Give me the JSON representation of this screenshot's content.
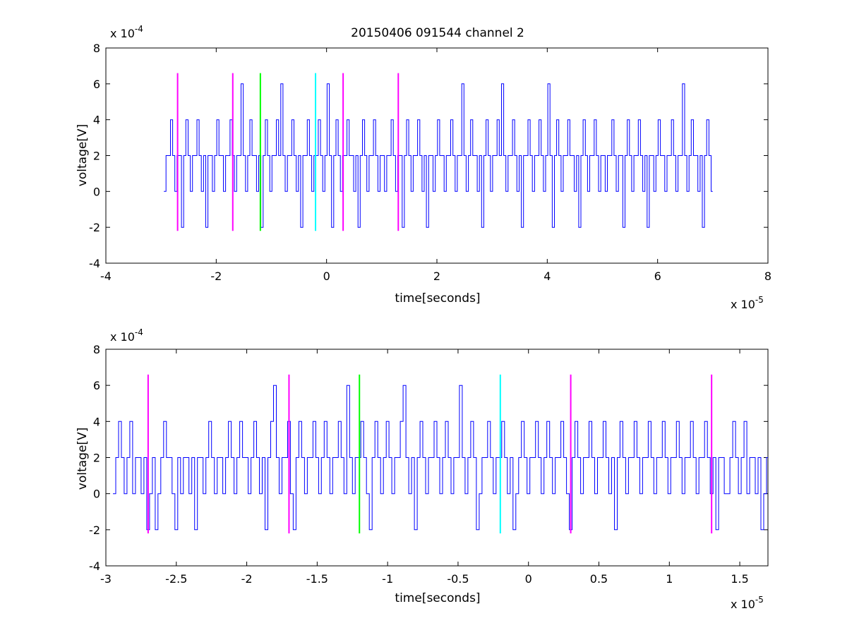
{
  "title": "20150406 091544 channel 2",
  "chart_data": [
    {
      "type": "line",
      "xlabel": "time[seconds]",
      "ylabel": "voltage[V]",
      "x_exponent": "x 10",
      "x_exponent_power": "-5",
      "y_exponent": "x 10",
      "y_exponent_power": "-4",
      "xlim": [
        -4,
        8
      ],
      "ylim": [
        -4,
        8
      ],
      "xticks": [
        "-4",
        "-2",
        "0",
        "2",
        "4",
        "6",
        "8"
      ],
      "xtick_values": [
        -4,
        -2,
        0,
        2,
        4,
        6,
        8
      ],
      "yticks": [
        "-4",
        "-2",
        "0",
        "2",
        "4",
        "6",
        "8"
      ],
      "ytick_values": [
        -4,
        -2,
        0,
        2,
        4,
        6,
        8
      ],
      "grid": false,
      "signal": {
        "x_start": -2.95,
        "x_end": 7.0,
        "dx": 0.04,
        "color": "#0000ff",
        "levels": [
          0,
          2,
          2,
          4,
          2,
          0,
          2,
          2,
          -2,
          2,
          4,
          2,
          0,
          2,
          2,
          4,
          2,
          0,
          2,
          -2,
          2,
          2,
          0,
          2,
          4,
          2,
          2,
          0,
          2,
          2,
          4,
          2,
          0,
          2,
          2,
          6,
          2,
          0,
          2,
          4,
          2,
          2,
          0,
          2,
          -2,
          2,
          4,
          2,
          0,
          2,
          2,
          4,
          2,
          6,
          2,
          0,
          2,
          2,
          4,
          2,
          0,
          2,
          -2,
          2,
          2,
          4,
          2,
          0,
          2,
          2,
          4,
          2,
          0,
          2,
          6,
          2,
          -2,
          2,
          4,
          2,
          0,
          2,
          2,
          4,
          2,
          2,
          0,
          2,
          -2,
          2,
          4,
          2,
          0,
          2,
          2,
          4,
          2,
          0,
          2,
          2
        ]
      },
      "markers": [
        {
          "x": -2.7,
          "color": "#ff00ff"
        },
        {
          "x": -1.7,
          "color": "#ff00ff"
        },
        {
          "x": -1.2,
          "color": "#00ff00"
        },
        {
          "x": -0.2,
          "color": "#00ffff"
        },
        {
          "x": 0.3,
          "color": "#ff00ff"
        },
        {
          "x": 1.3,
          "color": "#ff00ff"
        }
      ],
      "marker_range": [
        -2.2,
        6.6
      ]
    },
    {
      "type": "line",
      "xlabel": "time[seconds]",
      "ylabel": "voltage[V]",
      "x_exponent": "x 10",
      "x_exponent_power": "-5",
      "y_exponent": "x 10",
      "y_exponent_power": "-4",
      "xlim": [
        -3.0,
        1.7
      ],
      "ylim": [
        -4,
        8
      ],
      "xticks": [
        "-3",
        "-2.5",
        "-2",
        "-1.5",
        "-1",
        "-0.5",
        "0",
        "0.5",
        "1",
        "1.5"
      ],
      "xtick_values": [
        -3,
        -2.5,
        -2,
        -1.5,
        -1,
        -0.5,
        0,
        0.5,
        1,
        1.5
      ],
      "yticks": [
        "-4",
        "-2",
        "0",
        "2",
        "4",
        "6",
        "8"
      ],
      "ytick_values": [
        -4,
        -2,
        0,
        2,
        4,
        6,
        8
      ],
      "grid": false,
      "signal": {
        "x_start": -2.95,
        "x_end": 1.7,
        "dx": 0.02,
        "color": "#0000ff",
        "levels": [
          0,
          2,
          4,
          2,
          0,
          2,
          4,
          0,
          2,
          2,
          0,
          2,
          -2,
          0,
          2,
          -2,
          0,
          2,
          4,
          2,
          2,
          0,
          -2,
          2,
          0,
          2,
          2,
          0,
          2,
          -2,
          2,
          2,
          0,
          2,
          4,
          2,
          0,
          2,
          2,
          0,
          2,
          4,
          2,
          0,
          2,
          4,
          2,
          2,
          0,
          2,
          4,
          2,
          0,
          2,
          -2,
          2,
          4,
          6,
          2,
          0,
          2,
          2,
          4,
          0,
          -2,
          2,
          4,
          2,
          0,
          2,
          2,
          4,
          2,
          0,
          2,
          4,
          2,
          0,
          2,
          2,
          4,
          2,
          0,
          6,
          2,
          0,
          2,
          2,
          4,
          2,
          0,
          -2,
          2,
          4,
          2,
          0,
          2,
          4,
          2,
          0,
          2,
          2,
          4,
          6,
          2,
          0,
          2,
          -2,
          2,
          4,
          2,
          0,
          2,
          2,
          4,
          2,
          0,
          2,
          4,
          2,
          0,
          2,
          2,
          6,
          2,
          0,
          2,
          4,
          2,
          -2,
          0,
          2,
          2,
          4,
          2,
          0,
          2,
          2,
          4,
          2,
          0,
          2,
          -2,
          0,
          2,
          4,
          2,
          0,
          2,
          2,
          4,
          2,
          0,
          2,
          4,
          2,
          0,
          2,
          2,
          4,
          2,
          0,
          -2,
          2,
          4,
          2,
          0,
          2,
          2,
          4,
          2,
          0,
          2,
          2,
          4,
          2,
          0,
          2,
          -2,
          2,
          4,
          2,
          0,
          2,
          2,
          4,
          2,
          0,
          2,
          2,
          4,
          2,
          0,
          2,
          2,
          4,
          2,
          0,
          2,
          2,
          4,
          2,
          0,
          2,
          2,
          4,
          2,
          0,
          2,
          2,
          4,
          2,
          0,
          2,
          -2,
          2,
          2,
          0
        ]
      },
      "markers": [
        {
          "x": -2.7,
          "color": "#ff00ff"
        },
        {
          "x": -1.7,
          "color": "#ff00ff"
        },
        {
          "x": -1.2,
          "color": "#00ff00"
        },
        {
          "x": -0.2,
          "color": "#00ffff"
        },
        {
          "x": 0.3,
          "color": "#ff00ff"
        },
        {
          "x": 1.3,
          "color": "#ff00ff"
        }
      ],
      "marker_range": [
        -2.2,
        6.6
      ]
    }
  ]
}
